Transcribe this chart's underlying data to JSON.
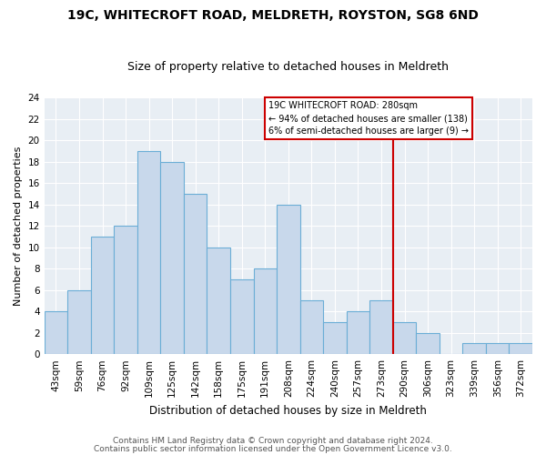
{
  "title": "19C, WHITECROFT ROAD, MELDRETH, ROYSTON, SG8 6ND",
  "subtitle": "Size of property relative to detached houses in Meldreth",
  "xlabel": "Distribution of detached houses by size in Meldreth",
  "ylabel": "Number of detached properties",
  "bin_labels": [
    "43sqm",
    "59sqm",
    "76sqm",
    "92sqm",
    "109sqm",
    "125sqm",
    "142sqm",
    "158sqm",
    "175sqm",
    "191sqm",
    "208sqm",
    "224sqm",
    "240sqm",
    "257sqm",
    "273sqm",
    "290sqm",
    "306sqm",
    "323sqm",
    "339sqm",
    "356sqm",
    "372sqm"
  ],
  "bar_heights": [
    4,
    6,
    11,
    12,
    19,
    18,
    15,
    10,
    7,
    8,
    14,
    5,
    3,
    4,
    5,
    3,
    2,
    0,
    1,
    1,
    1
  ],
  "bar_color": "#c8d8eb",
  "bar_edge_color": "#6baed6",
  "vline_x_idx": 14,
  "vline_color": "#cc0000",
  "annotation_box_title": "19C WHITECROFT ROAD: 280sqm",
  "annotation_line1": "← 94% of detached houses are smaller (138)",
  "annotation_line2": "6% of semi-detached houses are larger (9) →",
  "annotation_box_color": "#ffffff",
  "annotation_box_edge_color": "#cc0000",
  "footer1": "Contains HM Land Registry data © Crown copyright and database right 2024.",
  "footer2": "Contains public sector information licensed under the Open Government Licence v3.0.",
  "ylim": [
    0,
    24
  ],
  "background_color": "#ffffff",
  "plot_bg_color": "#e8eef4",
  "grid_color": "#ffffff",
  "title_fontsize": 10,
  "subtitle_fontsize": 9,
  "ylabel_fontsize": 8,
  "xlabel_fontsize": 8.5,
  "tick_fontsize": 7.5,
  "footer_fontsize": 6.5
}
